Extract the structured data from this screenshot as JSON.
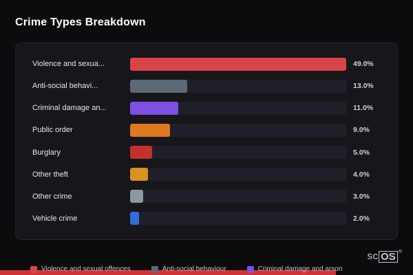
{
  "page": {
    "title": "Crime Types Breakdown",
    "logo": {
      "prefix": "sc",
      "suffix": "OS",
      "reg": "®"
    }
  },
  "chart_data": {
    "type": "bar",
    "orientation": "horizontal",
    "title": "Crime Types Breakdown",
    "categories": [
      "Violence and sexua...",
      "Anti-social behavi...",
      "Criminal damage an...",
      "Public order",
      "Burglary",
      "Other theft",
      "Other crime",
      "Vehicle crime"
    ],
    "values": [
      49.0,
      13.0,
      11.0,
      9.0,
      5.0,
      4.0,
      3.0,
      2.0
    ],
    "value_labels": [
      "49.0%",
      "13.0%",
      "11.0%",
      "9.0%",
      "5.0%",
      "4.0%",
      "3.0%",
      "2.0%"
    ],
    "bar_colors": [
      "#d9434a",
      "#5c6a78",
      "#7e4fe3",
      "#dd7a1e",
      "#c4302d",
      "#d6931f",
      "#8b97a2",
      "#2e6fdd"
    ],
    "xlim": [
      0,
      49
    ],
    "grid": false,
    "legend_position": "bottom",
    "legend": [
      {
        "label": "Violence and sexual offences",
        "color": "#d9434a"
      },
      {
        "label": "Anti-social behaviour",
        "color": "#5c6a78"
      },
      {
        "label": "Criminal damage and arson",
        "color": "#7e4fe3"
      }
    ]
  }
}
